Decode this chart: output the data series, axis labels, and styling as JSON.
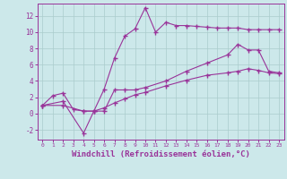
{
  "background_color": "#cce8ea",
  "grid_color": "#aacccc",
  "line_color": "#993399",
  "xlabel": "Windchill (Refroidissement éolien,°C)",
  "xlabel_fontsize": 6.5,
  "xlim": [
    -0.5,
    23.5
  ],
  "ylim": [
    -3.2,
    13.5
  ],
  "yticks": [
    -2,
    0,
    2,
    4,
    6,
    8,
    10,
    12
  ],
  "xticks": [
    0,
    1,
    2,
    3,
    4,
    5,
    6,
    7,
    8,
    9,
    10,
    11,
    12,
    13,
    14,
    15,
    16,
    17,
    18,
    19,
    20,
    21,
    22,
    23
  ],
  "series1_x": [
    0,
    1,
    2,
    3,
    4,
    5,
    6,
    7,
    8,
    9,
    10,
    11,
    12,
    13,
    14,
    15,
    16,
    17,
    18,
    19,
    20,
    21,
    22,
    23
  ],
  "series1_y": [
    1.0,
    2.2,
    2.5,
    0.5,
    0.3,
    0.3,
    3.0,
    6.8,
    9.5,
    10.4,
    13.0,
    10.0,
    11.2,
    10.8,
    10.8,
    10.7,
    10.6,
    10.5,
    10.5,
    10.5,
    10.3,
    10.3,
    10.3,
    10.3
  ],
  "series2_x": [
    0,
    2,
    4,
    5,
    6,
    7,
    8,
    9,
    10,
    12,
    14,
    16,
    18,
    19,
    20,
    21,
    22,
    23
  ],
  "series2_y": [
    1.0,
    1.5,
    -2.4,
    0.3,
    0.3,
    2.9,
    2.9,
    2.9,
    3.2,
    4.0,
    5.2,
    6.2,
    7.2,
    8.5,
    7.8,
    7.8,
    5.2,
    5.0
  ],
  "series3_x": [
    0,
    2,
    4,
    5,
    6,
    7,
    8,
    9,
    10,
    12,
    14,
    16,
    18,
    19,
    20,
    21,
    22,
    23
  ],
  "series3_y": [
    1.0,
    1.0,
    0.3,
    0.3,
    0.7,
    1.3,
    1.8,
    2.3,
    2.6,
    3.4,
    4.1,
    4.7,
    5.0,
    5.2,
    5.5,
    5.3,
    5.0,
    4.9
  ]
}
